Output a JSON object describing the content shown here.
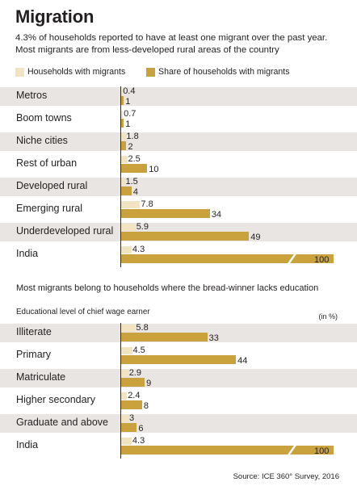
{
  "title": "Migration",
  "subtitle": "4.3% of households reported to have at least one migrant over the past year. Most migrants are from less-developed rural areas of the country",
  "legend": [
    {
      "label": "Households with migrants",
      "color": "#f2e4c0"
    },
    {
      "label": "Share of households with migrants",
      "color": "#c9a23e"
    }
  ],
  "section2_title": "Most migrants belong to households where the bread-winner lacks education",
  "section2_caption": "Educational level of chief wage earner",
  "section2_unit": "(in %)",
  "source": "Source: ICE 360° Survey, 2016",
  "chart_data": [
    {
      "type": "bar",
      "orientation": "horizontal",
      "categories": [
        "Metros",
        "Boom towns",
        "Niche cities",
        "Rest of urban",
        "Developed rural",
        "Emerging rural",
        "Underdeveloped rural",
        "India"
      ],
      "series": [
        {
          "name": "Households with migrants",
          "values": [
            0.4,
            0.7,
            1.8,
            2.5,
            1.5,
            7.8,
            5.9,
            4.3
          ],
          "labels": [
            "0.4",
            "0.7",
            "1.8",
            "2.5",
            "1.5",
            "7.8",
            "5.9",
            "4.3"
          ]
        },
        {
          "name": "Share of households with migrants",
          "values": [
            1,
            1,
            2,
            10,
            4,
            34,
            49,
            100
          ],
          "labels": [
            "1",
            "1",
            "2",
            "10",
            "4",
            "34",
            "49",
            "100"
          ]
        }
      ],
      "axis_break": {
        "category": "India",
        "series": "Share of households with migrants"
      }
    },
    {
      "type": "bar",
      "orientation": "horizontal",
      "categories": [
        "Illiterate",
        "Primary",
        "Matriculate",
        "Higher secondary",
        "Graduate and above",
        "India"
      ],
      "series": [
        {
          "name": "Households with migrants",
          "values": [
            5.8,
            4.5,
            2.9,
            2.4,
            3,
            4.3
          ],
          "labels": [
            "5.8",
            "4.5",
            "2.9",
            "2.4",
            "3",
            "4.3"
          ]
        },
        {
          "name": "Share of households with migrants",
          "values": [
            33,
            44,
            9,
            8,
            6,
            100
          ],
          "labels": [
            "33",
            "44",
            "9",
            "8",
            "6",
            "100"
          ]
        }
      ],
      "axis_break": {
        "category": "India",
        "series": "Share of households with migrants"
      }
    }
  ]
}
